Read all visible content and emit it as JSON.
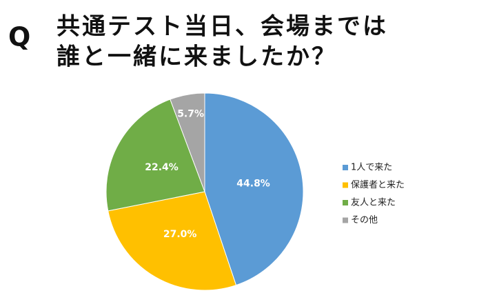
{
  "chart_data": {
    "type": "pie",
    "q_label": "Q",
    "title": [
      "共通テスト当日、会場までは",
      "誰と一緒に来ましたか？"
    ],
    "categories": [
      "1人で来た",
      "保護者と来た",
      "友人と来た",
      "その他"
    ],
    "values": [
      44.8,
      27.0,
      22.4,
      5.7
    ],
    "value_labels": [
      "44.8%",
      "27.0%",
      "22.4%",
      "5.7%"
    ],
    "colors": [
      "#5b9bd5",
      "#ffc000",
      "#70ad47",
      "#a5a5a5"
    ],
    "legend": "right"
  }
}
